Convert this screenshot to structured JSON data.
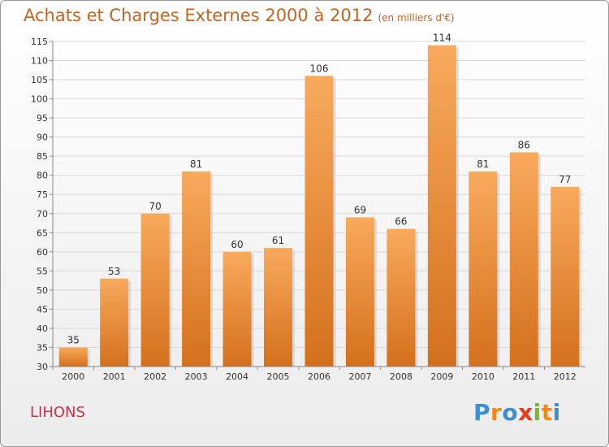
{
  "header": {
    "title": "Achats et Charges Externes 2000 à 2012",
    "unit": "(en milliers d'€)"
  },
  "footer": {
    "commune": "LIHONS",
    "logo": "Proxiti"
  },
  "colors": {
    "bar_top": "#f8aa5c",
    "bar_bottom": "#d4701c",
    "title": "#c8641e",
    "commune": "#cc2f4c",
    "logo_letters": [
      "#3e8fd0",
      "#f08a1d",
      "#3e8fd0",
      "#e73b1e",
      "#76b82a",
      "#f08a1d",
      "#3e8fd0"
    ]
  },
  "chart_data": {
    "type": "bar",
    "categories": [
      "2000",
      "2001",
      "2002",
      "2003",
      "2004",
      "2005",
      "2006",
      "2007",
      "2008",
      "2009",
      "2010",
      "2011",
      "2012"
    ],
    "values": [
      35,
      53,
      70,
      81,
      60,
      61,
      106,
      69,
      66,
      114,
      81,
      86,
      77
    ],
    "ylim": [
      30,
      115
    ],
    "yticks": [
      30,
      35,
      40,
      45,
      50,
      55,
      60,
      65,
      70,
      75,
      80,
      85,
      90,
      95,
      100,
      105,
      110,
      115
    ],
    "grid": true,
    "data_labels": true
  }
}
